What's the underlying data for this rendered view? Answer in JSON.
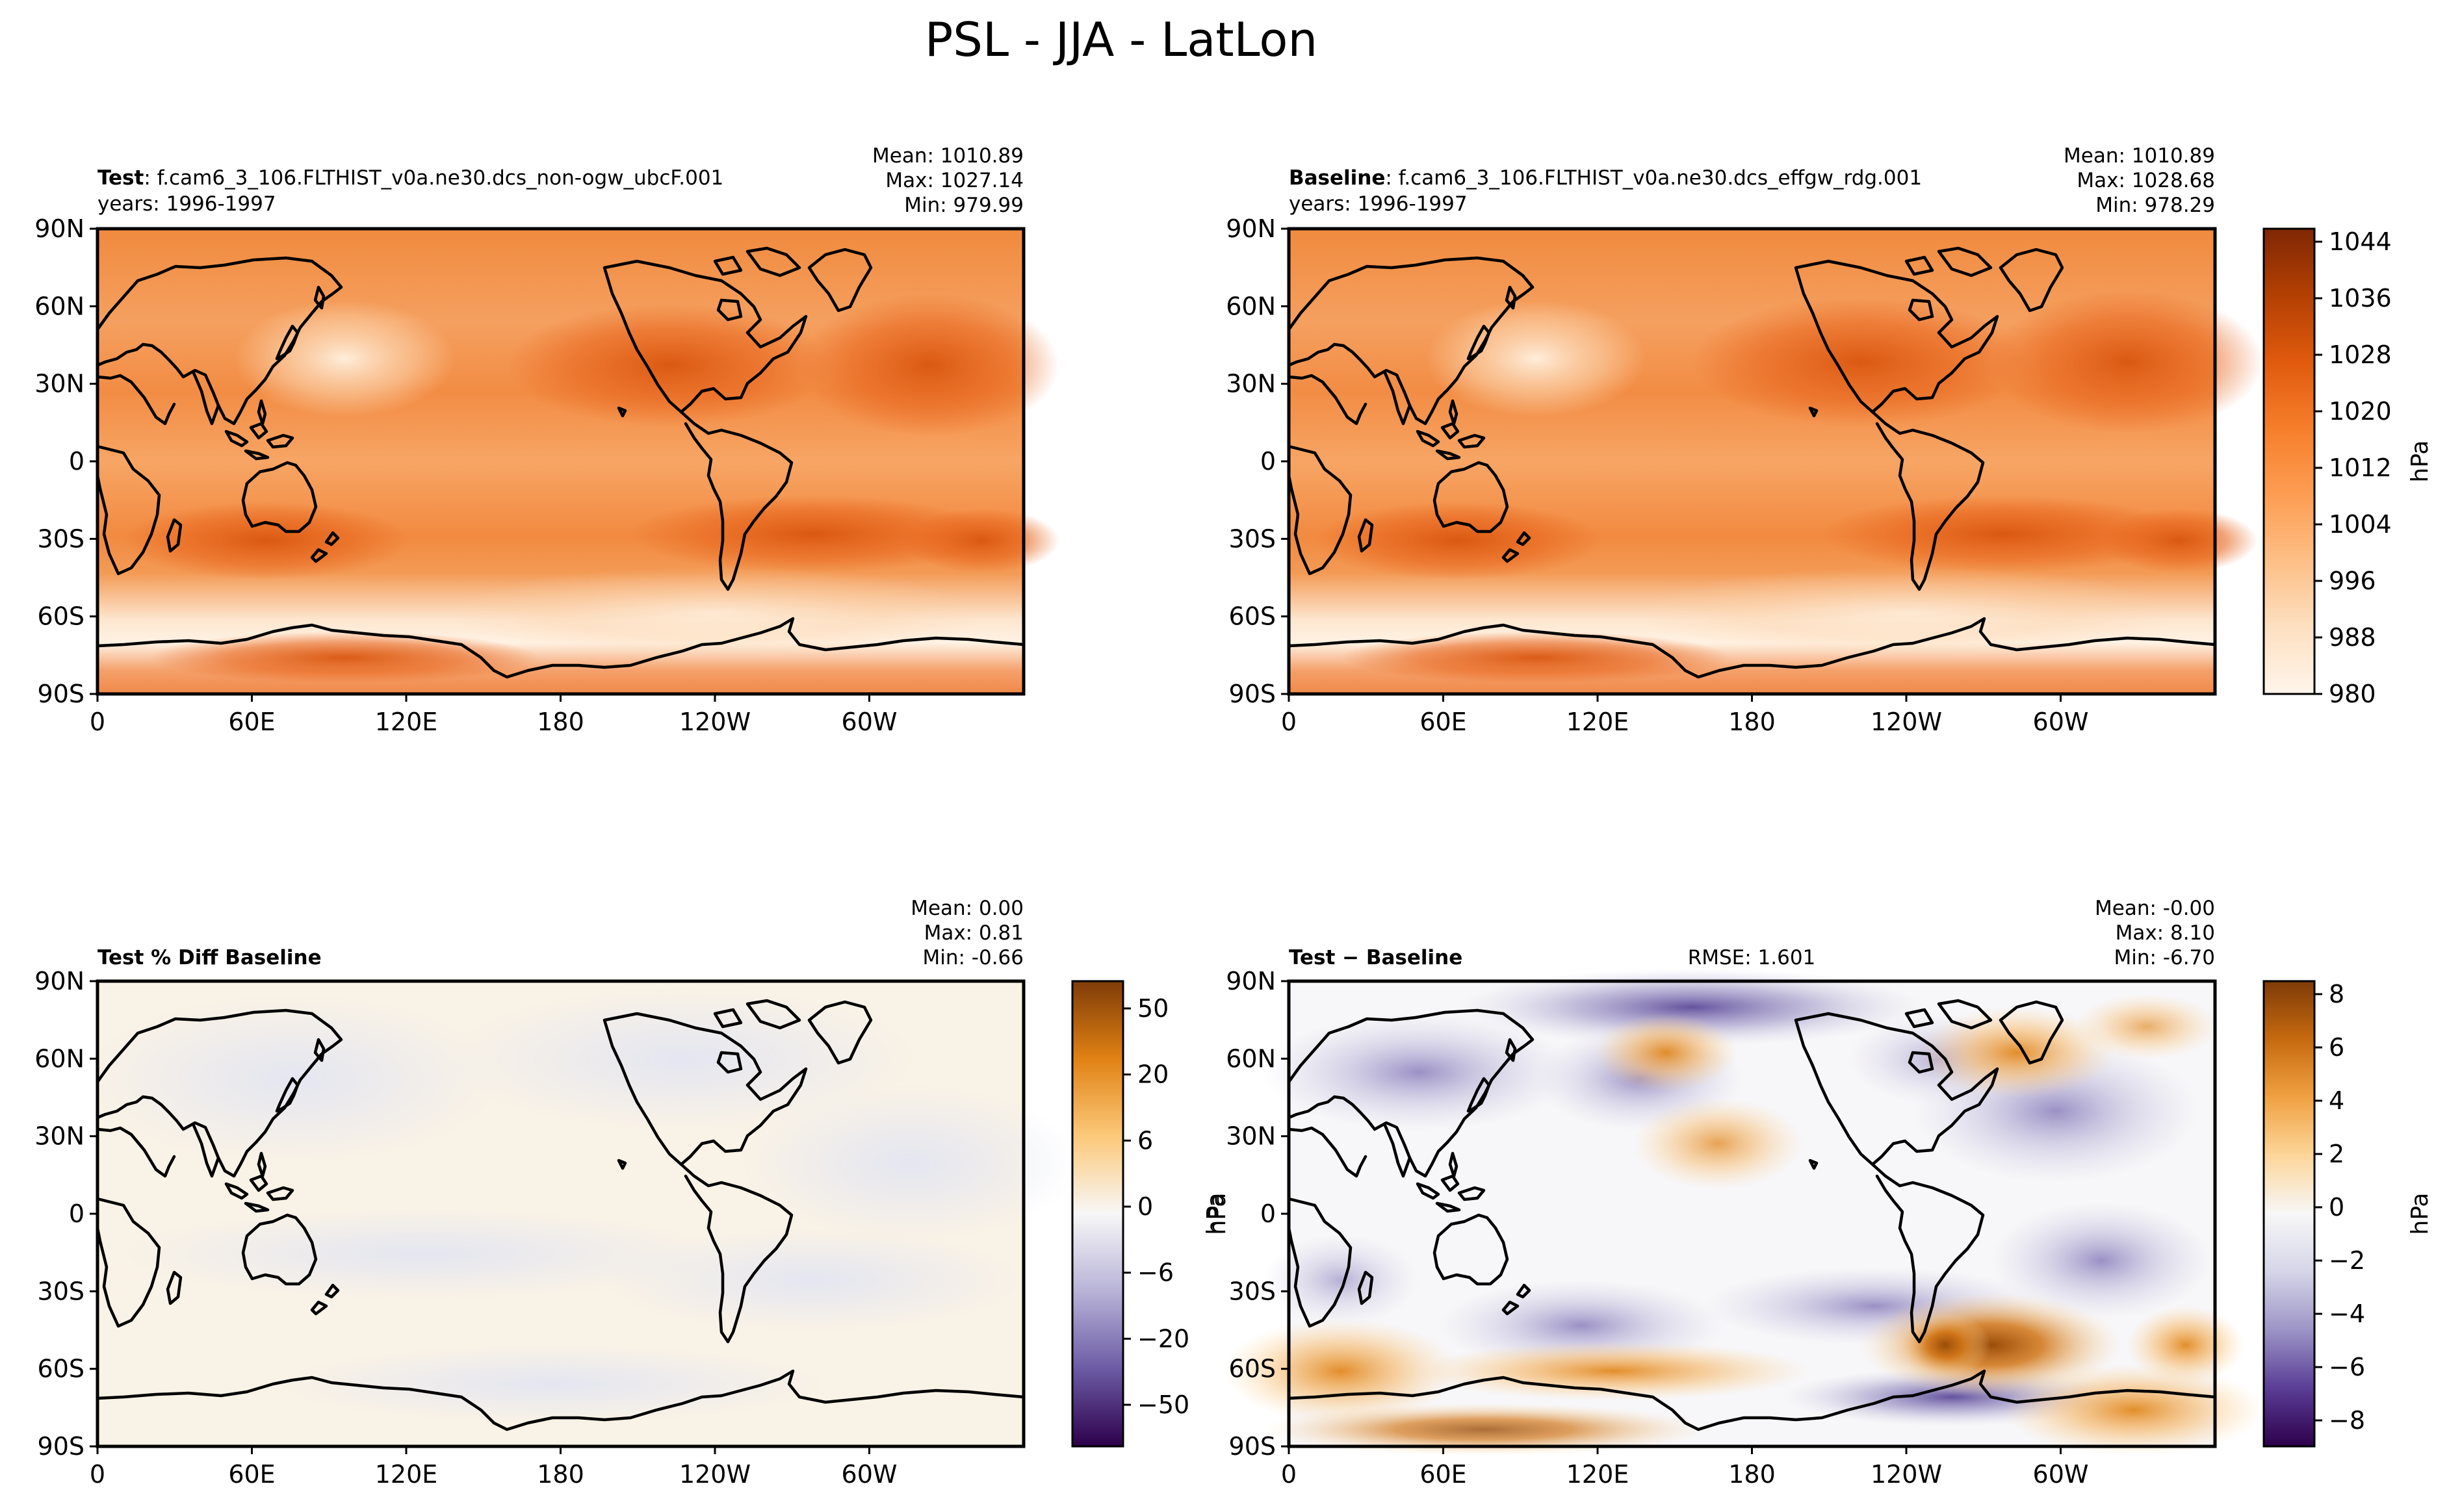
{
  "figure_title": "PSL - JJA - LatLon",
  "panels": {
    "test": {
      "label": "Test",
      "case": ": f.cam6_3_106.FLTHIST_v0a.ne30.dcs_non-ogw_ubcF.001",
      "years": "years: 1996-1997",
      "mean": "Mean: 1010.89",
      "max": "Max: 1027.14",
      "min": "Min: 979.99"
    },
    "baseline": {
      "label": "Baseline",
      "case": ": f.cam6_3_106.FLTHIST_v0a.ne30.dcs_effgw_rdg.001",
      "years": "years: 1996-1997",
      "mean": "Mean: 1010.89",
      "max": "Max: 1028.68",
      "min": "Min: 978.29"
    },
    "pctdiff": {
      "label": "Test % Diff Baseline",
      "mean": "Mean:  0.00",
      "max": "Max:  0.81",
      "min": "Min: -0.66"
    },
    "diff": {
      "label": "Test − Baseline",
      "rmse": "RMSE: 1.601",
      "mean": "Mean: -0.00",
      "max": "Max:  8.10",
      "min": "Min: -6.70"
    }
  },
  "axes": {
    "lat_ticks": [
      "90N",
      "60N",
      "30N",
      "0",
      "30S",
      "60S",
      "90S"
    ],
    "lon_ticks": [
      "0",
      "60E",
      "120E",
      "180",
      "120W",
      "60W"
    ]
  },
  "colorbars": {
    "psl": {
      "unit": "hPa",
      "ticks": [
        "1044",
        "1036",
        "1028",
        "1020",
        "1012",
        "1004",
        "996",
        "988",
        "980"
      ],
      "stops": [
        "#fff5eb",
        "#fde0c1",
        "#fdbf86",
        "#fd9d53",
        "#f67e2a",
        "#e05a0e",
        "#b34003",
        "#7f2704"
      ]
    },
    "pct": {
      "unit": "hPa",
      "ticks": [
        "50",
        "20",
        "6",
        "0",
        "−6",
        "−20",
        "−50"
      ],
      "stops": [
        "#2d004b",
        "#6c5ba5",
        "#b8b3d7",
        "#f7f7f7",
        "#fcc97a",
        "#e08214",
        "#7f3b08"
      ]
    },
    "diff": {
      "unit": "hPa",
      "ticks": [
        "8",
        "6",
        "4",
        "2",
        "0",
        "−2",
        "−4",
        "−6",
        "−8"
      ],
      "stops": [
        "#2d004b",
        "#5a3d96",
        "#9c94c6",
        "#d6d5e8",
        "#f7f7f7",
        "#fcd69a",
        "#f0a142",
        "#c66a0f",
        "#7f3b08"
      ]
    }
  },
  "colors": {
    "ocean_psl": "#f5924a",
    "ocean_psl_high": "#e8661e",
    "pct_bg": "#f9f2e6",
    "pct_blue": "#eceff5",
    "diff_bg": "#f7f6f8"
  }
}
